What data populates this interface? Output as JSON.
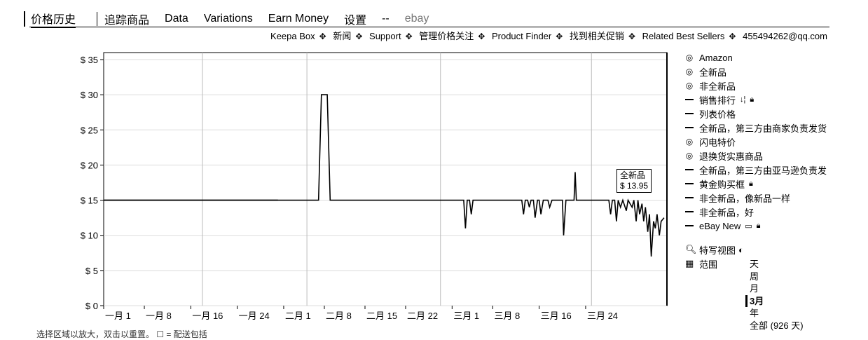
{
  "topnav": {
    "tabs": [
      "价格历史",
      "追踪商品",
      "Data",
      "Variations",
      "Earn Money",
      "设置",
      "--",
      "ebay"
    ]
  },
  "subnav": {
    "links": [
      "Keepa Box",
      "新闻",
      "Support",
      "管理价格关注",
      "Product Finder",
      "找到相关促销",
      "Related Best Sellers",
      "455494262@qq.com"
    ]
  },
  "legend": {
    "items": [
      {
        "icon": "ring",
        "label": "Amazon"
      },
      {
        "icon": "ring",
        "label": "全新品"
      },
      {
        "icon": "ring",
        "label": "非全新品"
      },
      {
        "icon": "dash",
        "label": "销售排行",
        "extra": "↓¦",
        "lock": true
      },
      {
        "icon": "dash",
        "label": "列表价格"
      },
      {
        "icon": "dash",
        "label": "全新品，第三方由商家负责发货"
      },
      {
        "icon": "ring",
        "label": "闪电特价"
      },
      {
        "icon": "ring",
        "label": "退换货实惠商品"
      },
      {
        "icon": "dash",
        "label": "全新品，第三方由亚马逊负责发"
      },
      {
        "icon": "dash",
        "label": "黄金购买框",
        "lock": true
      },
      {
        "icon": "dash",
        "label": "非全新品，像新品一样"
      },
      {
        "icon": "dash",
        "label": "非全新品，好"
      },
      {
        "icon": "dash",
        "label": "eBay New",
        "extra": "▭",
        "lock": true
      }
    ]
  },
  "view": {
    "closeup_label": "特写视图",
    "range_label": "范围",
    "ranges": [
      "天",
      "周",
      "月",
      "3月",
      "年",
      "全部 (926 天)"
    ],
    "selected_range": "3月"
  },
  "tooltip": {
    "title": "全新品",
    "price": "$ 13.95"
  },
  "footer": "选择区域以放大，双击以重置。    ☐ = 配送包括",
  "chart_data": {
    "type": "line",
    "y_ticks": [
      "$ 0",
      "$ 5",
      "$ 10",
      "$ 15",
      "$ 20",
      "$ 25",
      "$ 30",
      "$ 35"
    ],
    "x_ticks": [
      "一月 1",
      "一月 8",
      "一月 16",
      "一月 24",
      "二月 1",
      "二月 8",
      "二月 15",
      "二月 22",
      "三月 1",
      "三月 8",
      "三月 16",
      "三月 24"
    ],
    "ylim": [
      0,
      35
    ],
    "series": [
      {
        "name": "全新品",
        "color": "#000000",
        "points": [
          [
            0,
            15
          ],
          [
            37,
            15
          ],
          [
            37.5,
            30
          ],
          [
            38.5,
            30
          ],
          [
            39,
            15
          ],
          [
            54,
            15
          ],
          [
            56,
            15
          ],
          [
            62,
            15
          ],
          [
            62.3,
            11
          ],
          [
            62.6,
            15
          ],
          [
            63,
            15
          ],
          [
            63.3,
            13
          ],
          [
            63.6,
            15
          ],
          [
            72,
            15
          ],
          [
            72.3,
            13
          ],
          [
            72.6,
            15
          ],
          [
            73,
            15
          ],
          [
            73.3,
            14
          ],
          [
            73.6,
            15
          ],
          [
            74,
            15
          ],
          [
            74.3,
            12.5
          ],
          [
            74.7,
            15
          ],
          [
            75,
            15
          ],
          [
            75.3,
            13
          ],
          [
            75.7,
            15
          ],
          [
            76.5,
            15
          ],
          [
            76.8,
            14
          ],
          [
            77.2,
            15
          ],
          [
            79,
            15
          ],
          [
            79.2,
            10
          ],
          [
            79.6,
            15
          ],
          [
            81,
            15
          ],
          [
            81.2,
            19
          ],
          [
            81.4,
            15
          ],
          [
            82,
            15
          ],
          [
            87,
            15
          ],
          [
            87.3,
            13
          ],
          [
            87.6,
            15
          ],
          [
            88,
            15
          ],
          [
            88.3,
            12
          ],
          [
            88.6,
            15
          ],
          [
            89,
            14
          ],
          [
            89.4,
            15
          ],
          [
            90,
            13.5
          ],
          [
            90.3,
            15
          ],
          [
            91,
            14
          ],
          [
            91.3,
            15
          ],
          [
            91.7,
            12
          ],
          [
            92,
            15
          ],
          [
            92.3,
            13
          ],
          [
            92.7,
            14.5
          ],
          [
            93,
            12
          ],
          [
            93.3,
            14
          ],
          [
            93.7,
            10.5
          ],
          [
            94,
            13
          ],
          [
            94.3,
            7
          ],
          [
            94.7,
            12
          ],
          [
            95,
            11
          ],
          [
            95.3,
            13
          ],
          [
            95.7,
            10
          ],
          [
            96,
            12
          ],
          [
            96.5,
            12.5
          ]
        ]
      },
      {
        "name": "Amazon",
        "color": "#000000",
        "points": [
          [
            0,
            15
          ],
          [
            30,
            15
          ]
        ]
      }
    ],
    "grid": true
  }
}
